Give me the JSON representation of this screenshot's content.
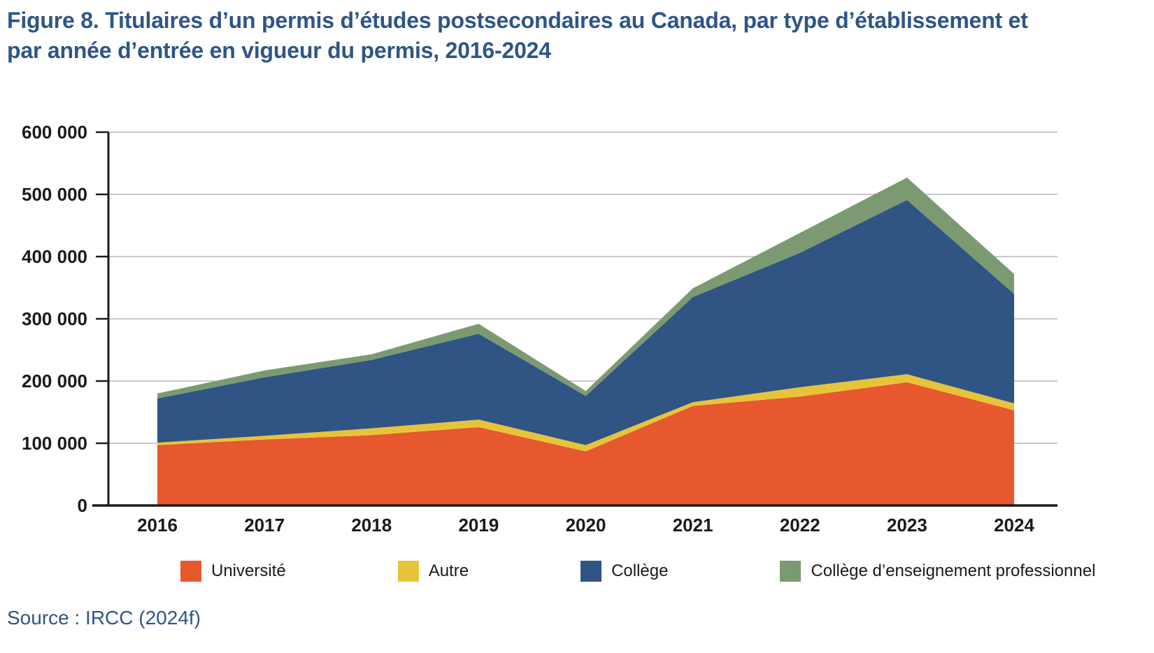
{
  "header": {
    "title": "Figure 8. Titulaires d’un permis d’études postsecondaires au Canada, par type d’établissement et par année d’entrée en vigueur du permis, 2016-2024"
  },
  "footer": {
    "source": "Source : IRCC (2024f)"
  },
  "colors": {
    "title_text": "#2E5586",
    "axis": "#1A1A1A",
    "gridline": "#C9C9C9",
    "universite": "#E7582E",
    "autre": "#E7C33A",
    "college": "#305584",
    "college_professionnel": "#7C9A72"
  },
  "chart_data": {
    "type": "area",
    "stacked": true,
    "title": "Figure 8. Titulaires d’un permis d’études postsecondaires au Canada, par type d’établissement et par année d’entrée en vigueur du permis, 2016-2024",
    "xlabel": "",
    "ylabel": "",
    "x_labels": [
      "2016",
      "2017",
      "2018",
      "2019",
      "2020",
      "2021",
      "2022",
      "2023",
      "2024"
    ],
    "series": [
      {
        "name": "Université",
        "color": "#E7582E",
        "values": [
          97000,
          106000,
          113000,
          126000,
          87000,
          160000,
          175000,
          198000,
          153000
        ]
      },
      {
        "name": "Autre",
        "color": "#E7C33A",
        "values": [
          4000,
          6000,
          11000,
          12000,
          10000,
          6000,
          15000,
          13000,
          11000
        ]
      },
      {
        "name": "Collège",
        "color": "#305584",
        "values": [
          71000,
          94000,
          110000,
          138000,
          79000,
          169000,
          216000,
          280000,
          176000
        ]
      },
      {
        "name": "Collège d’enseignement professionnel",
        "color": "#7C9A72",
        "values": [
          8000,
          11000,
          9000,
          16000,
          8000,
          14000,
          32000,
          36000,
          32000
        ]
      }
    ],
    "cumulative_tops": {
      "2016": [
        97000,
        101000,
        172000,
        180000
      ],
      "2017": [
        106000,
        112000,
        206000,
        217000
      ],
      "2018": [
        113000,
        124000,
        234000,
        243000
      ],
      "2019": [
        126000,
        138000,
        276000,
        292000
      ],
      "2020": [
        87000,
        97000,
        176000,
        184000
      ],
      "2021": [
        160000,
        166000,
        335000,
        349000
      ],
      "2022": [
        175000,
        190000,
        406000,
        438000
      ],
      "2023": [
        198000,
        211000,
        491000,
        527000
      ],
      "2024": [
        153000,
        164000,
        340000,
        372000
      ]
    },
    "ylim": [
      0,
      600000
    ],
    "ytick_step": 100000,
    "ytick_labels": [
      "0",
      "100 000",
      "200 000",
      "300 000",
      "400 000",
      "500 000",
      "600 000"
    ],
    "grid": true,
    "legend_position": "bottom"
  }
}
